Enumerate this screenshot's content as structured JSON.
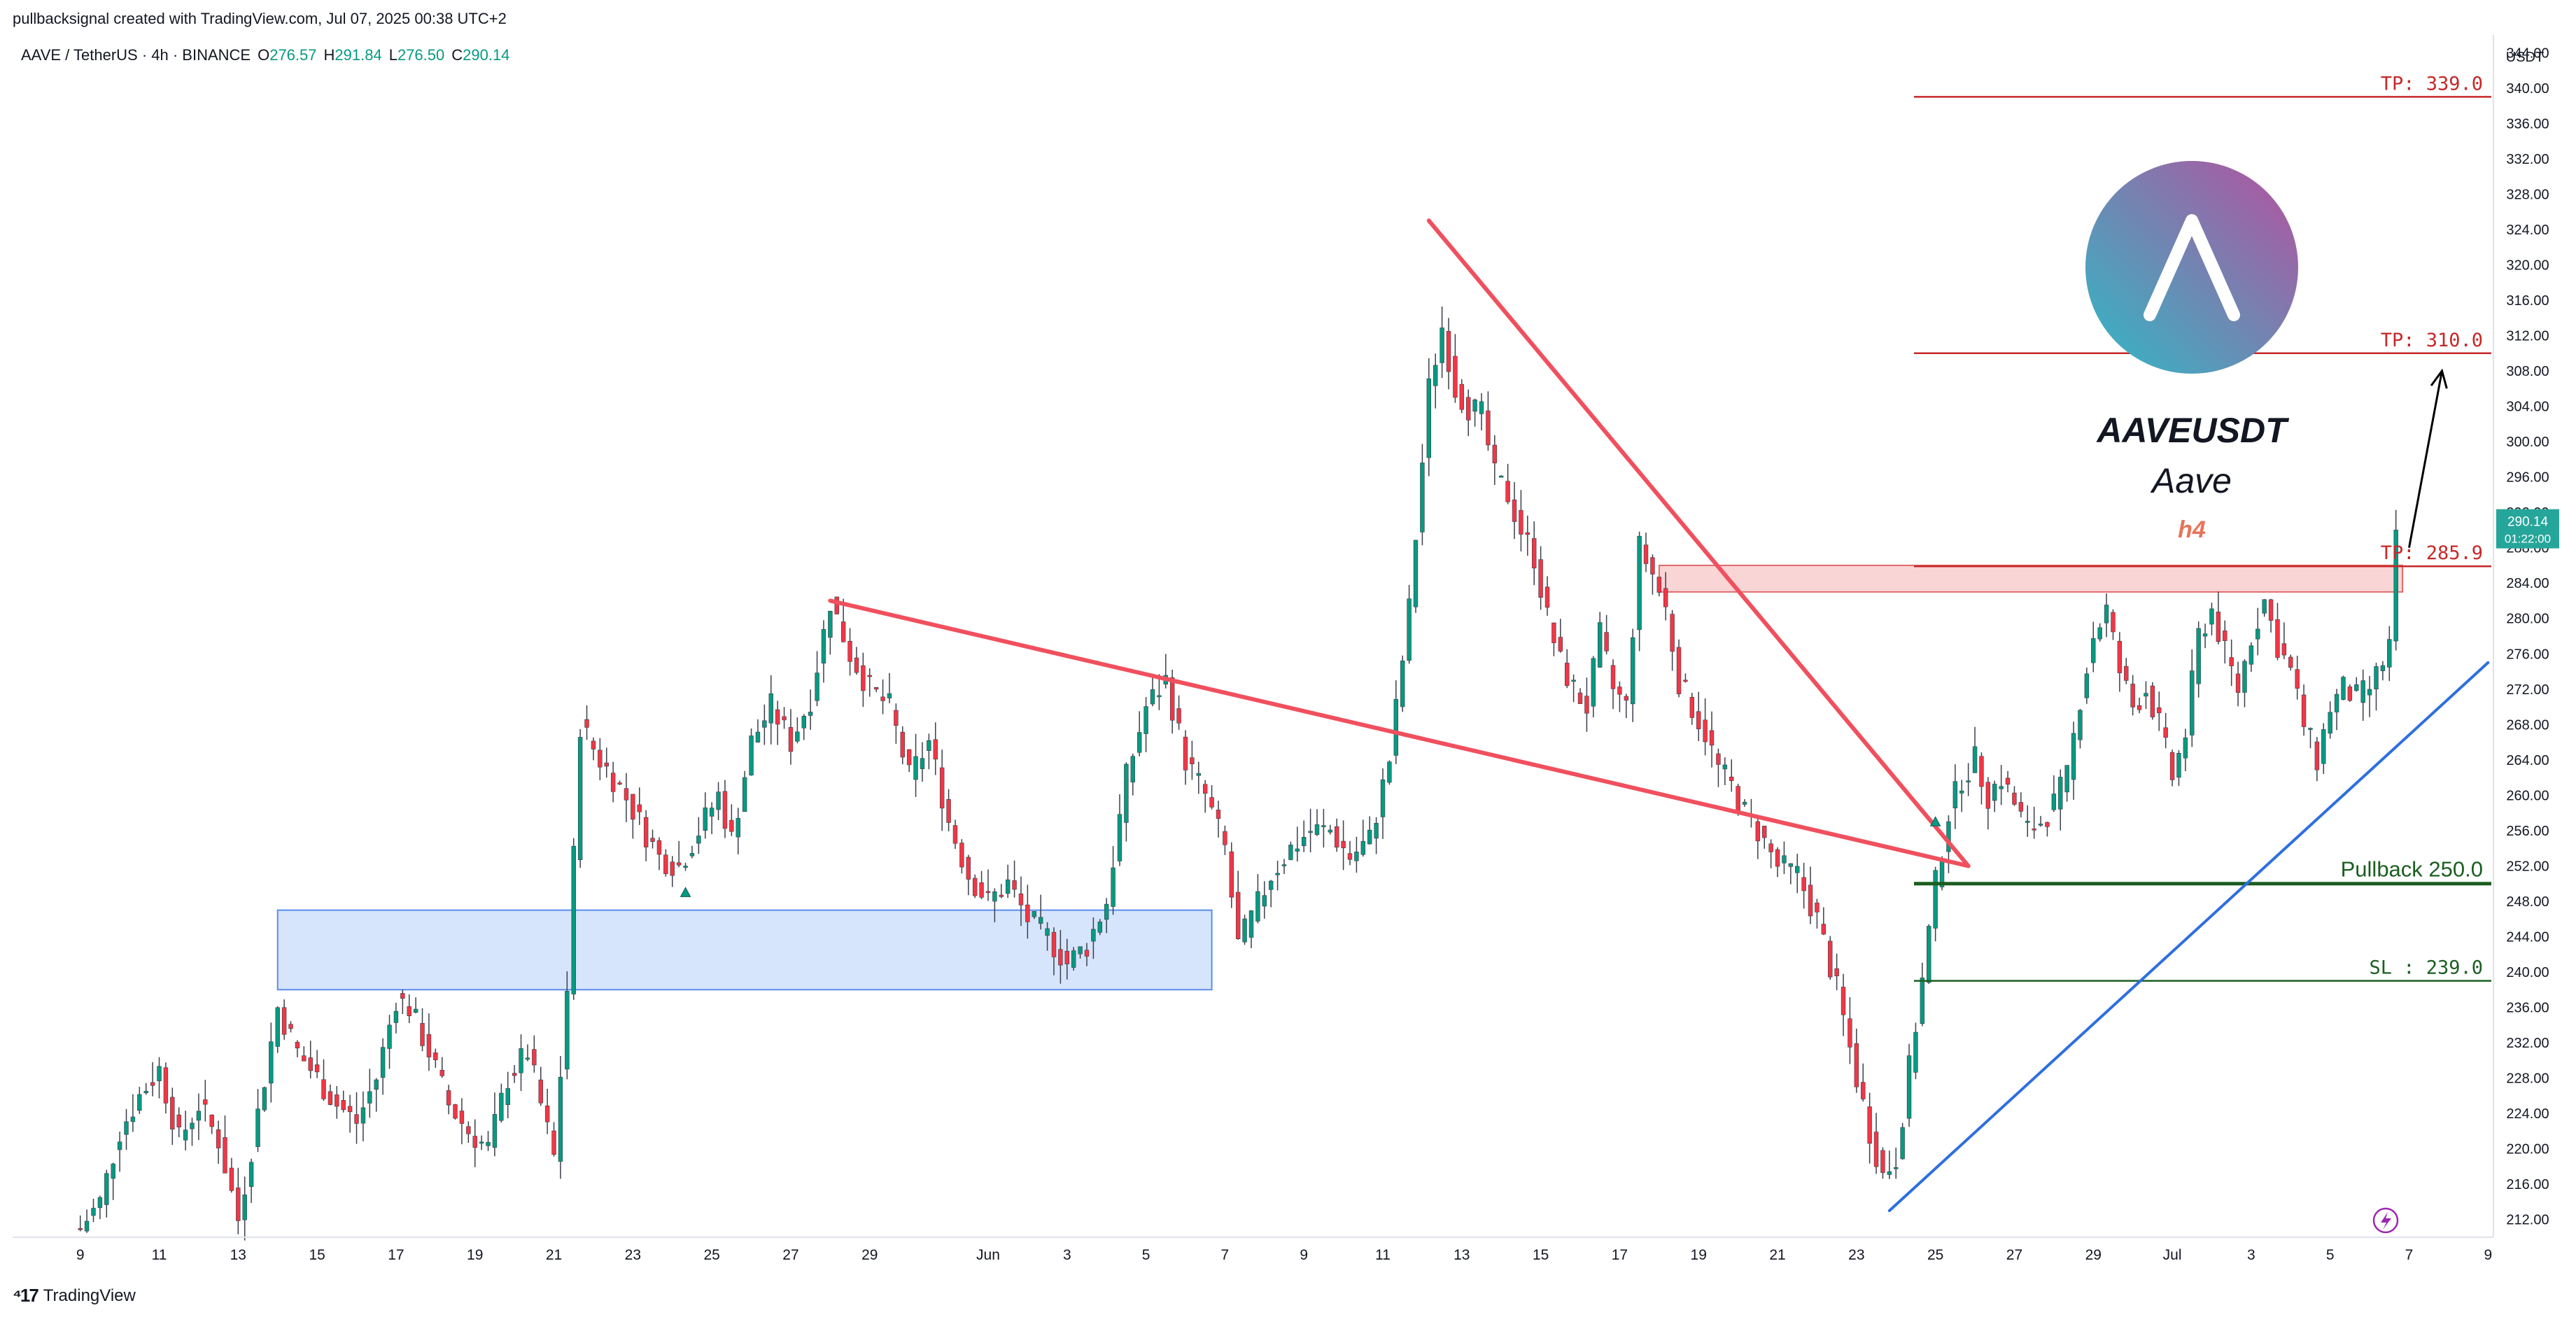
{
  "header": {
    "attribution": "pullbacksignal created with TradingView.com, Jul 07, 2025 00:38 UTC+2",
    "symbol": "AAVE / TetherUS · 4h · BINANCE",
    "ohlc": [
      {
        "k": "O",
        "v": "276.57"
      },
      {
        "k": "H",
        "v": "291.84"
      },
      {
        "k": "L",
        "v": "276.50"
      },
      {
        "k": "C",
        "v": "290.14"
      }
    ]
  },
  "footer": {
    "brand": "TradingView"
  },
  "colors": {
    "up": "#089981",
    "down": "#f23645",
    "trendline": "#f0505e",
    "support_line": "#2e6fe0",
    "zone_blue": "#cfe0fb",
    "zone_red": "#f8caca",
    "tp_line": "#c62828",
    "green_line": "#1b5e20",
    "price_tag": "#26a69a"
  },
  "chart_data": {
    "type": "candlestick",
    "title": "AAVEUSDT",
    "subtitle": "Aave",
    "timeframe_label": "h4",
    "y_unit": "USDT",
    "ylim": [
      210,
      346
    ],
    "y_ticks": [
      212,
      216,
      220,
      224,
      228,
      232,
      236,
      240,
      244,
      248,
      252,
      256,
      260,
      264,
      268,
      272,
      276,
      280,
      284,
      288,
      292,
      296,
      300,
      304,
      308,
      312,
      316,
      320,
      324,
      328,
      332,
      336,
      340,
      344
    ],
    "x_ticks": [
      {
        "i": 0,
        "label": "9"
      },
      {
        "i": 12,
        "label": "11"
      },
      {
        "i": 24,
        "label": "13"
      },
      {
        "i": 36,
        "label": "15"
      },
      {
        "i": 48,
        "label": "17"
      },
      {
        "i": 60,
        "label": "19"
      },
      {
        "i": 72,
        "label": "21"
      },
      {
        "i": 84,
        "label": "23"
      },
      {
        "i": 96,
        "label": "25"
      },
      {
        "i": 108,
        "label": "27"
      },
      {
        "i": 120,
        "label": "29"
      },
      {
        "i": 138,
        "label": "Jun"
      },
      {
        "i": 150,
        "label": "3"
      },
      {
        "i": 162,
        "label": "5"
      },
      {
        "i": 174,
        "label": "7"
      },
      {
        "i": 186,
        "label": "9"
      },
      {
        "i": 198,
        "label": "11"
      },
      {
        "i": 210,
        "label": "13"
      },
      {
        "i": 222,
        "label": "15"
      },
      {
        "i": 234,
        "label": "17"
      },
      {
        "i": 246,
        "label": "19"
      },
      {
        "i": 258,
        "label": "21"
      },
      {
        "i": 270,
        "label": "23"
      },
      {
        "i": 282,
        "label": "25"
      },
      {
        "i": 294,
        "label": "27"
      },
      {
        "i": 306,
        "label": "29"
      },
      {
        "i": 318,
        "label": "Jul"
      },
      {
        "i": 330,
        "label": "3"
      },
      {
        "i": 342,
        "label": "5"
      },
      {
        "i": 354,
        "label": "7"
      },
      {
        "i": 366,
        "label": "9"
      }
    ],
    "anchors": [
      [
        0,
        211
      ],
      [
        3,
        214
      ],
      [
        6,
        222
      ],
      [
        9,
        226
      ],
      [
        12,
        229
      ],
      [
        15,
        221
      ],
      [
        18,
        225
      ],
      [
        21,
        221
      ],
      [
        24,
        212
      ],
      [
        27,
        224
      ],
      [
        30,
        236
      ],
      [
        33,
        231
      ],
      [
        36,
        228
      ],
      [
        39,
        225
      ],
      [
        42,
        223
      ],
      [
        45,
        228
      ],
      [
        48,
        237
      ],
      [
        50,
        236
      ],
      [
        53,
        231
      ],
      [
        56,
        225
      ],
      [
        59,
        222
      ],
      [
        62,
        220
      ],
      [
        65,
        228
      ],
      [
        68,
        231
      ],
      [
        70,
        225
      ],
      [
        72,
        219
      ],
      [
        74,
        238
      ],
      [
        76,
        268
      ],
      [
        79,
        264
      ],
      [
        82,
        261
      ],
      [
        85,
        257
      ],
      [
        88,
        253
      ],
      [
        91,
        252
      ],
      [
        94,
        256
      ],
      [
        97,
        260
      ],
      [
        99,
        255
      ],
      [
        102,
        266
      ],
      [
        105,
        270
      ],
      [
        108,
        266
      ],
      [
        111,
        271
      ],
      [
        114,
        282
      ],
      [
        117,
        276
      ],
      [
        120,
        272
      ],
      [
        123,
        270
      ],
      [
        126,
        262
      ],
      [
        129,
        266
      ],
      [
        132,
        257
      ],
      [
        135,
        251
      ],
      [
        138,
        248
      ],
      [
        141,
        250
      ],
      [
        144,
        246
      ],
      [
        147,
        244
      ],
      [
        150,
        241
      ],
      [
        153,
        243
      ],
      [
        156,
        248
      ],
      [
        159,
        262
      ],
      [
        162,
        270
      ],
      [
        165,
        273
      ],
      [
        168,
        264
      ],
      [
        171,
        260
      ],
      [
        174,
        254
      ],
      [
        176,
        243
      ],
      [
        178,
        246
      ],
      [
        181,
        251
      ],
      [
        184,
        254
      ],
      [
        187,
        256
      ],
      [
        190,
        256
      ],
      [
        193,
        253
      ],
      [
        196,
        255
      ],
      [
        199,
        264
      ],
      [
        202,
        281
      ],
      [
        205,
        306
      ],
      [
        207,
        313
      ],
      [
        209,
        306
      ],
      [
        211,
        304
      ],
      [
        213,
        303
      ],
      [
        215,
        296
      ],
      [
        217,
        294
      ],
      [
        219,
        290
      ],
      [
        221,
        287
      ],
      [
        223,
        280
      ],
      [
        225,
        275
      ],
      [
        227,
        272
      ],
      [
        229,
        270
      ],
      [
        231,
        278
      ],
      [
        233,
        272
      ],
      [
        235,
        270
      ],
      [
        237,
        288
      ],
      [
        239,
        285
      ],
      [
        241,
        281
      ],
      [
        243,
        273
      ],
      [
        245,
        270
      ],
      [
        247,
        267
      ],
      [
        249,
        263
      ],
      [
        251,
        261
      ],
      [
        253,
        258
      ],
      [
        255,
        256
      ],
      [
        258,
        252
      ],
      [
        261,
        251
      ],
      [
        264,
        246
      ],
      [
        267,
        238
      ],
      [
        270,
        228
      ],
      [
        272,
        222
      ],
      [
        274,
        217
      ],
      [
        276,
        219
      ],
      [
        278,
        229
      ],
      [
        280,
        239
      ],
      [
        282,
        250
      ],
      [
        284,
        258
      ],
      [
        286,
        262
      ],
      [
        288,
        264
      ],
      [
        290,
        260
      ],
      [
        292,
        262
      ],
      [
        294,
        259
      ],
      [
        296,
        256
      ],
      [
        298,
        257
      ],
      [
        300,
        259
      ],
      [
        302,
        262
      ],
      [
        304,
        271
      ],
      [
        306,
        278
      ],
      [
        308,
        281
      ],
      [
        310,
        274
      ],
      [
        312,
        270
      ],
      [
        314,
        272
      ],
      [
        316,
        268
      ],
      [
        318,
        262
      ],
      [
        320,
        267
      ],
      [
        322,
        278
      ],
      [
        324,
        281
      ],
      [
        326,
        276
      ],
      [
        328,
        272
      ],
      [
        330,
        278
      ],
      [
        332,
        282
      ],
      [
        334,
        277
      ],
      [
        336,
        274
      ],
      [
        338,
        268
      ],
      [
        340,
        264
      ],
      [
        342,
        270
      ],
      [
        344,
        272
      ],
      [
        346,
        271
      ],
      [
        348,
        272
      ],
      [
        350,
        275
      ],
      [
        351,
        277
      ],
      [
        352,
        290
      ]
    ],
    "annotations": [
      {
        "type": "horizontal_line",
        "price": 339.0,
        "label": "TP: 339.0"
      },
      {
        "type": "horizontal_line",
        "price": 310.0,
        "label": "TP: 310.0"
      },
      {
        "type": "horizontal_line",
        "price": 285.9,
        "label": "TP: 285.9"
      },
      {
        "type": "horizontal_line",
        "price": 250.0,
        "label": "Pullback 250.0"
      },
      {
        "type": "horizontal_line",
        "price": 239.0,
        "label": "SL : 239.0"
      },
      {
        "type": "zone",
        "from_i": 30,
        "to_i": 172,
        "low": 238,
        "high": 247
      },
      {
        "type": "zone",
        "from_i": 240,
        "to_i": 353,
        "low": 283,
        "high": 286
      },
      {
        "type": "trendline",
        "from": [
          114,
          282
        ],
        "to": [
          287,
          252
        ]
      },
      {
        "type": "trendline",
        "from": [
          205,
          325
        ],
        "to": [
          287,
          252
        ]
      },
      {
        "type": "trendline",
        "from": [
          275,
          213
        ],
        "to": [
          366,
          275
        ]
      },
      {
        "type": "arrow",
        "from": [
          354,
          288
        ],
        "to": [
          359,
          308
        ]
      }
    ],
    "last_price": "290.14",
    "countdown": "01:22:00"
  }
}
